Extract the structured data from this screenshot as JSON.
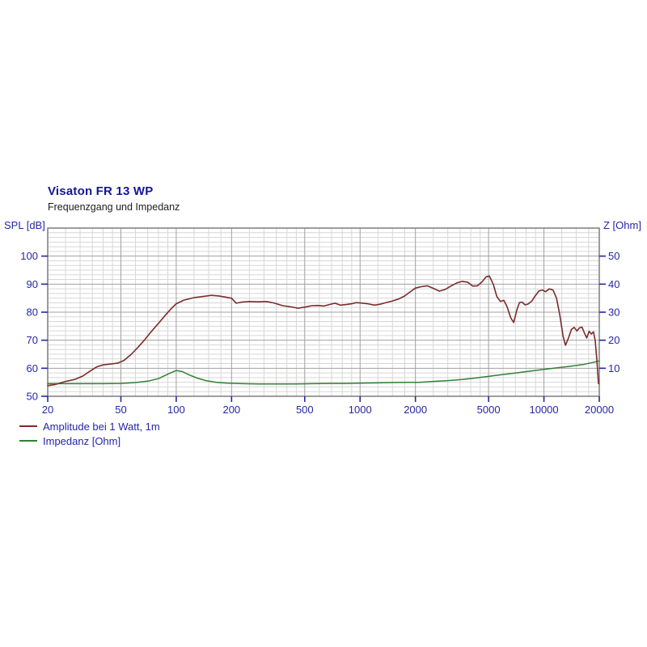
{
  "header": {
    "title": "Visaton FR 13 WP",
    "subtitle": "Frequenzgang und Impedanz"
  },
  "chart_data": {
    "type": "line",
    "x_scale": "log",
    "x_range": [
      20,
      20000
    ],
    "x_major_ticks": [
      20,
      50,
      100,
      200,
      500,
      1000,
      2000,
      5000,
      10000,
      20000
    ],
    "x_tick_labels": [
      "20",
      "50",
      "100",
      "200",
      "500",
      "1000",
      "2000",
      "5000",
      "10000",
      "20000"
    ],
    "x_minor_gridlines": [
      25,
      30,
      35,
      40,
      45,
      60,
      70,
      80,
      90,
      125,
      150,
      175,
      250,
      300,
      350,
      400,
      450,
      600,
      700,
      800,
      900,
      1250,
      1500,
      1750,
      2500,
      3000,
      3500,
      4000,
      4500,
      6000,
      7000,
      8000,
      9000,
      12500,
      15000,
      17500
    ],
    "left_axis": {
      "label": "SPL [dB]",
      "range": [
        50,
        110
      ],
      "major_step": 10,
      "minor_divisions": 6,
      "tick_values": [
        100,
        90,
        80,
        70,
        60,
        50
      ]
    },
    "right_axis": {
      "label": "Z [Ohm]",
      "range": [
        0,
        60
      ],
      "tick_values": [
        50,
        40,
        30,
        20,
        10
      ]
    },
    "grid": true,
    "colors": {
      "grid_minor": "#d7d7d7",
      "grid_major": "#a0a0a0",
      "frame": "#7d7d7d",
      "tick": "#2626a8",
      "tick_label": "#2626a8",
      "amplitude": "#7a2c2c",
      "impedance": "#2f8132"
    },
    "series": [
      {
        "name": "Amplitude bei 1 Watt, 1m",
        "axis": "left",
        "unit": "dB",
        "points": [
          [
            20,
            53.8
          ],
          [
            22,
            54.2
          ],
          [
            25,
            55.3
          ],
          [
            28,
            56.0
          ],
          [
            31,
            57.2
          ],
          [
            34,
            59.0
          ],
          [
            37,
            60.5
          ],
          [
            40,
            61.2
          ],
          [
            44,
            61.5
          ],
          [
            48,
            61.8
          ],
          [
            52,
            62.8
          ],
          [
            57,
            65.0
          ],
          [
            62,
            67.5
          ],
          [
            67,
            70.0
          ],
          [
            73,
            73.0
          ],
          [
            80,
            76.0
          ],
          [
            87,
            78.8
          ],
          [
            94,
            81.3
          ],
          [
            100,
            83.0
          ],
          [
            110,
            84.3
          ],
          [
            125,
            85.2
          ],
          [
            140,
            85.6
          ],
          [
            155,
            86.0
          ],
          [
            170,
            85.8
          ],
          [
            185,
            85.4
          ],
          [
            200,
            85.0
          ],
          [
            212,
            83.2
          ],
          [
            228,
            83.6
          ],
          [
            250,
            83.8
          ],
          [
            280,
            83.7
          ],
          [
            310,
            83.8
          ],
          [
            340,
            83.3
          ],
          [
            380,
            82.3
          ],
          [
            420,
            81.9
          ],
          [
            460,
            81.4
          ],
          [
            500,
            81.8
          ],
          [
            545,
            82.3
          ],
          [
            590,
            82.4
          ],
          [
            635,
            82.2
          ],
          [
            680,
            82.7
          ],
          [
            730,
            83.2
          ],
          [
            780,
            82.5
          ],
          [
            840,
            82.7
          ],
          [
            900,
            83.0
          ],
          [
            950,
            83.4
          ],
          [
            1000,
            83.3
          ],
          [
            1100,
            83.0
          ],
          [
            1200,
            82.5
          ],
          [
            1300,
            82.9
          ],
          [
            1400,
            83.5
          ],
          [
            1500,
            84.0
          ],
          [
            1620,
            84.7
          ],
          [
            1750,
            85.8
          ],
          [
            1870,
            87.2
          ],
          [
            2000,
            88.6
          ],
          [
            2150,
            89.1
          ],
          [
            2320,
            89.4
          ],
          [
            2500,
            88.5
          ],
          [
            2700,
            87.5
          ],
          [
            2900,
            88.1
          ],
          [
            3100,
            89.2
          ],
          [
            3350,
            90.4
          ],
          [
            3600,
            91.0
          ],
          [
            3850,
            90.7
          ],
          [
            4100,
            89.3
          ],
          [
            4350,
            89.4
          ],
          [
            4600,
            90.8
          ],
          [
            4850,
            92.6
          ],
          [
            5050,
            92.9
          ],
          [
            5300,
            90.0
          ],
          [
            5550,
            85.5
          ],
          [
            5800,
            83.8
          ],
          [
            6050,
            84.2
          ],
          [
            6300,
            82.0
          ],
          [
            6600,
            78.0
          ],
          [
            6850,
            76.3
          ],
          [
            7100,
            80.5
          ],
          [
            7350,
            83.4
          ],
          [
            7600,
            83.6
          ],
          [
            7900,
            82.6
          ],
          [
            8200,
            82.9
          ],
          [
            8600,
            84.0
          ],
          [
            9000,
            86.0
          ],
          [
            9400,
            87.6
          ],
          [
            9800,
            87.9
          ],
          [
            10200,
            87.3
          ],
          [
            10700,
            88.3
          ],
          [
            11200,
            87.9
          ],
          [
            11700,
            85.0
          ],
          [
            12200,
            79.0
          ],
          [
            12700,
            71.5
          ],
          [
            13100,
            68.2
          ],
          [
            13600,
            70.8
          ],
          [
            14100,
            73.8
          ],
          [
            14600,
            74.6
          ],
          [
            15100,
            73.3
          ],
          [
            15600,
            74.4
          ],
          [
            16100,
            74.7
          ],
          [
            16600,
            72.6
          ],
          [
            17100,
            70.8
          ],
          [
            17600,
            73.2
          ],
          [
            18100,
            72.2
          ],
          [
            18600,
            73.0
          ],
          [
            19000,
            70.0
          ],
          [
            19400,
            63.0
          ],
          [
            19800,
            54.5
          ]
        ]
      },
      {
        "name": "Impedanz [Ohm]",
        "axis": "right",
        "unit": "Ohm",
        "points": [
          [
            20,
            4.5
          ],
          [
            30,
            4.5
          ],
          [
            40,
            4.5
          ],
          [
            50,
            4.6
          ],
          [
            60,
            4.9
          ],
          [
            70,
            5.4
          ],
          [
            80,
            6.3
          ],
          [
            90,
            7.9
          ],
          [
            100,
            9.2
          ],
          [
            108,
            8.8
          ],
          [
            118,
            7.6
          ],
          [
            130,
            6.5
          ],
          [
            145,
            5.6
          ],
          [
            165,
            5.0
          ],
          [
            190,
            4.7
          ],
          [
            230,
            4.5
          ],
          [
            280,
            4.4
          ],
          [
            350,
            4.4
          ],
          [
            450,
            4.4
          ],
          [
            550,
            4.5
          ],
          [
            700,
            4.6
          ],
          [
            850,
            4.6
          ],
          [
            1000,
            4.7
          ],
          [
            1250,
            4.8
          ],
          [
            1500,
            4.9
          ],
          [
            1800,
            5.0
          ],
          [
            2100,
            5.0
          ],
          [
            2500,
            5.3
          ],
          [
            3000,
            5.6
          ],
          [
            3600,
            6.0
          ],
          [
            4200,
            6.5
          ],
          [
            5000,
            7.1
          ],
          [
            5900,
            7.7
          ],
          [
            7000,
            8.3
          ],
          [
            8250,
            8.9
          ],
          [
            9500,
            9.4
          ],
          [
            11600,
            10.1
          ],
          [
            13500,
            10.6
          ],
          [
            16300,
            11.3
          ],
          [
            18000,
            11.9
          ],
          [
            20000,
            12.6
          ]
        ]
      }
    ]
  },
  "legend": {
    "items": [
      {
        "label": "Amplitude bei 1 Watt, 1m",
        "color": "#7a2c2c"
      },
      {
        "label": "Impedanz [Ohm]",
        "color": "#2f8132"
      }
    ]
  }
}
